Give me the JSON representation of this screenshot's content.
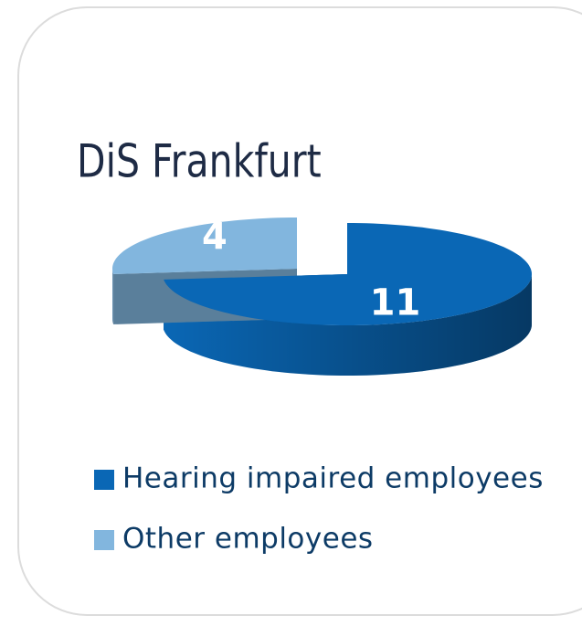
{
  "chart_data": {
    "type": "pie",
    "title": "DiS Frankfurt",
    "categories": [
      "Hearing impaired employees",
      "Other employees"
    ],
    "values": [
      11,
      4
    ],
    "colors": [
      "#0a67b5",
      "#82b6de"
    ],
    "legend": "bottom"
  }
}
